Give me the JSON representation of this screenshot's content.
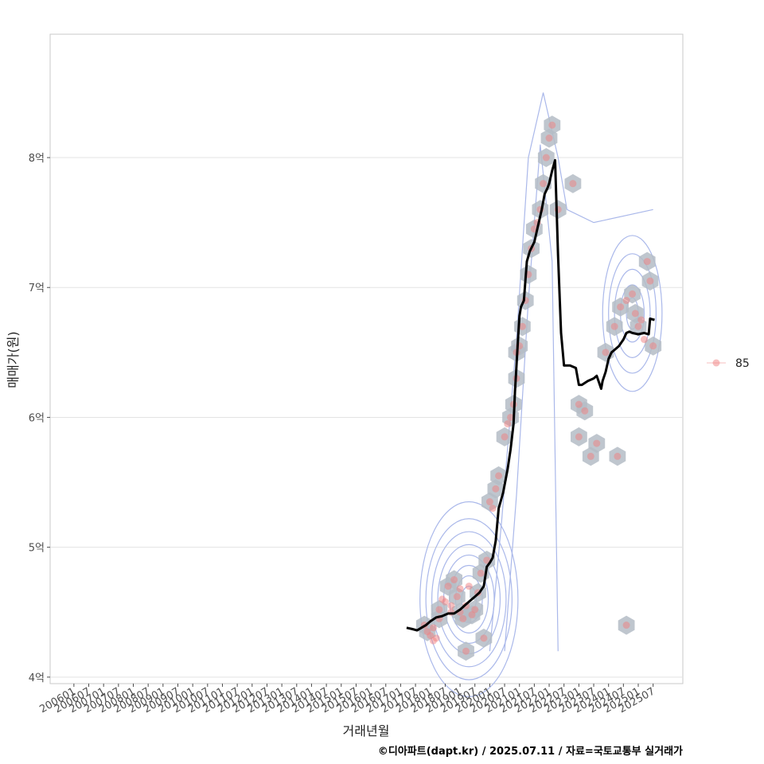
{
  "chart_data": {
    "type": "scatter",
    "xlabel": "거래년월",
    "ylabel": "매매가(원)",
    "caption": "©디아파트(dapt.kr) / 2025.07.11 / 자료=국토교통부 실거래가",
    "ylim": [
      3.95,
      8.95
    ],
    "y_ticks": [
      {
        "value": 4,
        "label": "4억"
      },
      {
        "value": 5,
        "label": "5억"
      },
      {
        "value": 6,
        "label": "6억"
      },
      {
        "value": 7,
        "label": "7억"
      },
      {
        "value": 8,
        "label": "8억"
      }
    ],
    "x_range": [
      2005.2,
      2026.5
    ],
    "x_ticks": [
      {
        "value": 2006.0,
        "label": "200601"
      },
      {
        "value": 2006.5,
        "label": "200607"
      },
      {
        "value": 2007.0,
        "label": "200701"
      },
      {
        "value": 2007.5,
        "label": "200707"
      },
      {
        "value": 2008.0,
        "label": "200801"
      },
      {
        "value": 2008.5,
        "label": "200807"
      },
      {
        "value": 2009.0,
        "label": "200901"
      },
      {
        "value": 2009.5,
        "label": "200907"
      },
      {
        "value": 2010.0,
        "label": "201001"
      },
      {
        "value": 2010.5,
        "label": "201007"
      },
      {
        "value": 2011.0,
        "label": "201101"
      },
      {
        "value": 2011.5,
        "label": "201107"
      },
      {
        "value": 2012.0,
        "label": "201201"
      },
      {
        "value": 2012.5,
        "label": "201207"
      },
      {
        "value": 2013.0,
        "label": "201301"
      },
      {
        "value": 2013.5,
        "label": "201307"
      },
      {
        "value": 2014.0,
        "label": "201401"
      },
      {
        "value": 2014.5,
        "label": "201407"
      },
      {
        "value": 2015.0,
        "label": "201501"
      },
      {
        "value": 2015.5,
        "label": "201507"
      },
      {
        "value": 2016.0,
        "label": "201601"
      },
      {
        "value": 2016.5,
        "label": "201607"
      },
      {
        "value": 2017.0,
        "label": "201701"
      },
      {
        "value": 2017.5,
        "label": "201707"
      },
      {
        "value": 2018.0,
        "label": "201801"
      },
      {
        "value": 2018.5,
        "label": "201807"
      },
      {
        "value": 2019.0,
        "label": "201901"
      },
      {
        "value": 2019.5,
        "label": "201907"
      },
      {
        "value": 2020.0,
        "label": "202001"
      },
      {
        "value": 2020.5,
        "label": "202007"
      },
      {
        "value": 2021.0,
        "label": "202101"
      },
      {
        "value": 2021.5,
        "label": "202107"
      },
      {
        "value": 2022.0,
        "label": "202201"
      },
      {
        "value": 2022.5,
        "label": "202207"
      },
      {
        "value": 2023.0,
        "label": "202301"
      },
      {
        "value": 2023.5,
        "label": "202307"
      },
      {
        "value": 2024.0,
        "label": "202401"
      },
      {
        "value": 2024.5,
        "label": "202407"
      },
      {
        "value": 2025.0,
        "label": "202501"
      },
      {
        "value": 2025.5,
        "label": "202507"
      }
    ],
    "legend": {
      "label": "85",
      "position": "right"
    },
    "colors": {
      "points": "#f08080",
      "line": "#000000",
      "hex": "#b4bcc6",
      "contour": "#aab8ea",
      "grid": "#e3e3e3",
      "panel_border": "#c8c8c8"
    },
    "series": [
      {
        "name": "moving-average",
        "x": [
          2017.2,
          2017.4,
          2017.55,
          2017.7,
          2017.85,
          2018.0,
          2018.2,
          2018.4,
          2018.6,
          2018.8,
          2019.0,
          2019.2,
          2019.4,
          2019.5,
          2019.65,
          2019.8,
          2019.9,
          2020.0,
          2020.1,
          2020.2,
          2020.3,
          2020.45,
          2020.6,
          2020.7,
          2020.8,
          2020.85,
          2020.9,
          2020.95,
          2021.0,
          2021.05,
          2021.15,
          2021.25,
          2021.35,
          2021.5,
          2021.65,
          2021.75,
          2021.85,
          2021.95,
          2022.0,
          2022.1,
          2022.2,
          2022.3,
          2022.4,
          2022.5,
          2022.7,
          2022.9,
          2023.0,
          2023.1,
          2023.3,
          2023.5,
          2023.6,
          2023.75,
          2023.8,
          2023.9,
          2024.0,
          2024.1,
          2024.2,
          2024.35,
          2024.5,
          2024.6,
          2024.7,
          2024.8,
          2025.0,
          2025.2,
          2025.35,
          2025.4,
          2025.55
        ],
        "y": [
          4.38,
          4.37,
          4.36,
          4.38,
          4.4,
          4.43,
          4.46,
          4.47,
          4.49,
          4.49,
          4.52,
          4.56,
          4.6,
          4.62,
          4.65,
          4.7,
          4.85,
          4.88,
          4.92,
          5.05,
          5.3,
          5.42,
          5.6,
          5.75,
          5.95,
          6.2,
          6.4,
          6.6,
          6.78,
          6.85,
          6.9,
          7.2,
          7.28,
          7.35,
          7.5,
          7.6,
          7.72,
          7.77,
          7.8,
          7.9,
          7.98,
          7.25,
          6.65,
          6.4,
          6.4,
          6.38,
          6.25,
          6.25,
          6.28,
          6.3,
          6.32,
          6.22,
          6.28,
          6.35,
          6.45,
          6.5,
          6.52,
          6.55,
          6.6,
          6.65,
          6.66,
          6.65,
          6.64,
          6.65,
          6.64,
          6.76,
          6.75
        ]
      },
      {
        "name": "transactions",
        "x": [
          2017.8,
          2017.9,
          2018.0,
          2018.1,
          2018.1,
          2018.2,
          2018.3,
          2018.3,
          2018.4,
          2018.5,
          2018.6,
          2018.7,
          2018.7,
          2018.8,
          2018.9,
          2019.0,
          2019.0,
          2019.1,
          2019.2,
          2019.2,
          2019.3,
          2019.4,
          2019.5,
          2019.6,
          2019.7,
          2019.8,
          2019.9,
          2020.0,
          2020.1,
          2020.2,
          2020.3,
          2020.5,
          2020.6,
          2020.7,
          2020.8,
          2020.9,
          2020.9,
          2021.0,
          2021.1,
          2021.2,
          2021.3,
          2021.4,
          2021.5,
          2021.6,
          2021.7,
          2021.8,
          2021.9,
          2022.0,
          2022.1,
          2022.3,
          2022.8,
          2023.0,
          2023.2,
          2023.4,
          2023.6,
          2023.9,
          2024.2,
          2024.4,
          2024.6,
          2024.8,
          2024.9,
          2025.0,
          2025.1,
          2025.2,
          2025.3,
          2025.4,
          2025.5,
          2023.0,
          2024.3,
          2024.6
        ],
        "y": [
          4.4,
          4.35,
          4.32,
          4.28,
          4.38,
          4.3,
          4.45,
          4.52,
          4.6,
          4.58,
          4.7,
          4.55,
          4.5,
          4.75,
          4.62,
          4.5,
          4.68,
          4.45,
          4.2,
          4.55,
          4.7,
          4.48,
          4.52,
          4.65,
          4.8,
          4.3,
          4.9,
          5.35,
          5.3,
          5.45,
          5.55,
          5.85,
          5.95,
          6.0,
          6.1,
          6.3,
          6.5,
          6.55,
          6.7,
          6.9,
          7.1,
          7.3,
          7.45,
          7.5,
          7.6,
          7.8,
          8.0,
          8.15,
          8.25,
          7.6,
          7.8,
          6.1,
          6.05,
          5.7,
          5.8,
          6.5,
          6.7,
          6.85,
          6.9,
          6.95,
          6.8,
          6.7,
          6.75,
          6.6,
          7.2,
          7.05,
          6.55,
          5.85,
          5.7,
          4.4
        ]
      }
    ]
  }
}
